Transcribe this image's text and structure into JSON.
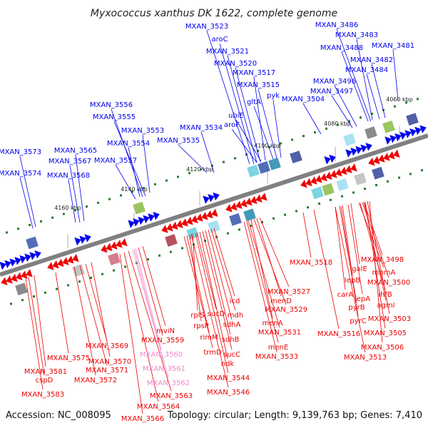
{
  "title": "Myxococcus xanthus DK 1622, complete genome",
  "accession": "Accession: NC_008095",
  "topology": "Topology: circular; Length: 9,139,763 bp; Genes: 7,410",
  "colors": {
    "forward": "#0000ee",
    "reverse": "#ee0000",
    "highlight": "#ee88cc",
    "backbone": "#808080",
    "tick": "#2a7a2a"
  },
  "ticks": [
    "4060 kbp",
    "4080 kbp",
    "4100 kbp",
    "4120 kbp",
    "4140 kbp",
    "4160 kbp"
  ],
  "labels_forward": [
    "MXAN_3523",
    "aroC",
    "MXAN_3521",
    "MXAN_3520",
    "MXAN_3517",
    "MXAN_3515",
    "pyk",
    "gltA",
    "ubiE",
    "aroF",
    "MXAN_3534",
    "MXAN_3535",
    "MXAN_3556",
    "MXAN_3555",
    "MXAN_3553",
    "MXAN_3554",
    "MXAN_3557",
    "MXAN_3573",
    "MXAN_3574",
    "MXAN_3565",
    "MXAN_3567",
    "MXAN_3568",
    "MXAN_3486",
    "MXAN_3483",
    "MXAN_3488",
    "MXAN_3481",
    "MXAN_3482",
    "MXAN_3484",
    "MXAN_3496",
    "MXAN_3497",
    "MXAN_3504"
  ],
  "labels_reverse": [
    "MXAN_3518",
    "MXAN_3498",
    "galE",
    "mnmA",
    "lepB",
    "MXAN_3500",
    "lepA",
    "ihfB",
    "carA",
    "agmI",
    "pyrB",
    "MXAN_3503",
    "pyrC",
    "MXAN_3505",
    "MXAN_3516",
    "MXAN_3506",
    "MXAN_3513",
    "MXAN_3527",
    "menD",
    "MXAN_3529",
    "menA",
    "MXAN_3531",
    "menE",
    "MXAN_3533",
    "icd",
    "mdh",
    "sdhA",
    "sdhB",
    "sucC",
    "ndk",
    "rplS",
    "sucD",
    "rpsP",
    "rimM",
    "trmD",
    "MXAN_3544",
    "MXAN_3546",
    "mviN",
    "MXAN_3559",
    "MXAN_3569",
    "MXAN_3570",
    "MXAN_3571",
    "MXAN_3572",
    "MXAN_3575",
    "MXAN_3581",
    "cspD",
    "MXAN_3583",
    "MXAN_3563",
    "MXAN_3564",
    "MXAN_3566"
  ],
  "labels_highlight": [
    "MXAN_3560",
    "MXAN_3561",
    "MXAN_3562"
  ]
}
